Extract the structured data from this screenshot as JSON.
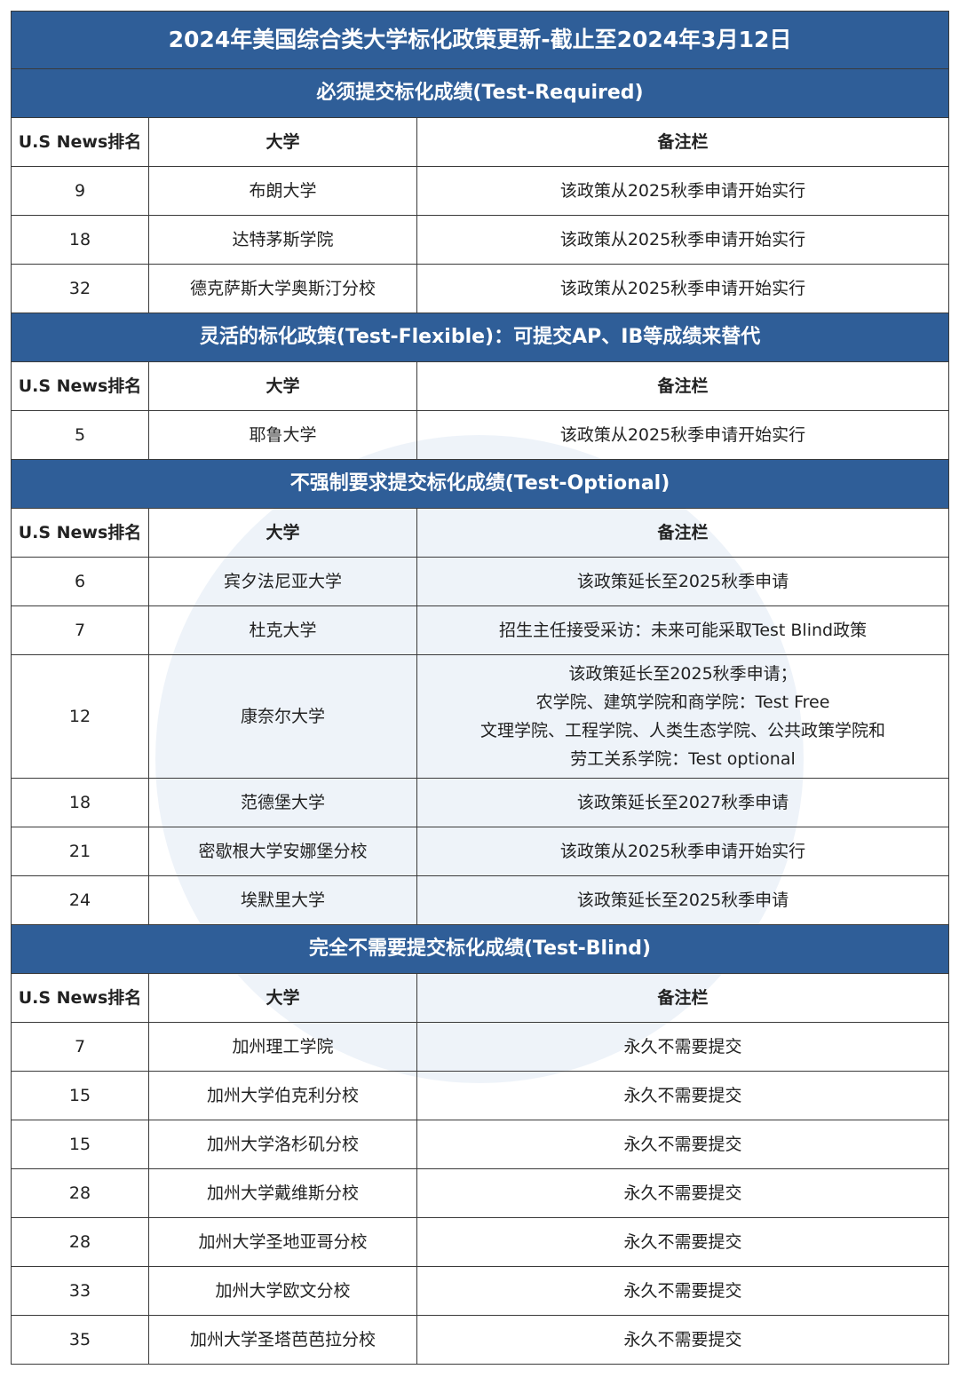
{
  "title": "2024年美国综合类大学标化政策更新-截止至2024年3月12日",
  "sections": [
    {
      "heading": "必须提交标化成绩(Test-Required)",
      "columns": [
        "U.S News排名",
        "大学",
        "备注栏"
      ],
      "rows": [
        [
          9,
          "布朗大学",
          [
            "该政策从2025秋季申请开始实行"
          ]
        ],
        [
          18,
          "达特茅斯学院",
          [
            "该政策从2025秋季申请开始实行"
          ]
        ],
        [
          32,
          "德克萨斯大学奥斯汀分校",
          [
            "该政策从2025秋季申请开始实行"
          ]
        ]
      ]
    },
    {
      "heading": "灵活的标化政策(Test-Flexible)：可提交AP、IB等成绩来替代",
      "columns": [
        "U.S News排名",
        "大学",
        "备注栏"
      ],
      "rows": [
        [
          5,
          "耶鲁大学",
          [
            "该政策从2025秋季申请开始实行"
          ]
        ]
      ]
    },
    {
      "heading": "不强制要求提交标化成绩(Test-Optional)",
      "columns": [
        "U.S News排名",
        "大学",
        "备注栏"
      ],
      "rows": [
        [
          6,
          "宾夕法尼亚大学",
          [
            "该政策延长至2025秋季申请"
          ]
        ],
        [
          7,
          "杜克大学",
          [
            "招生主任接受采访：未来可能采取Test Blind政策"
          ]
        ],
        [
          12,
          "康奈尔大学",
          [
            "该政策延长至2025秋季申请；",
            "农学院、建筑学院和商学院：Test Free",
            "文理学院、工程学院、人类生态学院、公共政策学院和",
            "劳工关系学院：Test optional"
          ]
        ],
        [
          18,
          "范德堡大学",
          [
            "该政策延长至2027秋季申请"
          ]
        ],
        [
          21,
          "密歇根大学安娜堡分校",
          [
            "该政策从2025秋季申请开始实行"
          ]
        ],
        [
          24,
          "埃默里大学",
          [
            "该政策延长至2025秋季申请"
          ]
        ]
      ]
    },
    {
      "heading": "完全不需要提交标化成绩(Test-Blind)",
      "columns": [
        "U.S News排名",
        "大学",
        "备注栏"
      ],
      "rows": [
        [
          7,
          "加州理工学院",
          [
            "永久不需要提交"
          ]
        ],
        [
          15,
          "加州大学伯克利分校",
          [
            "永久不需要提交"
          ]
        ],
        [
          15,
          "加州大学洛杉矶分校",
          [
            "永久不需要提交"
          ]
        ],
        [
          28,
          "加州大学戴维斯分校",
          [
            "永久不需要提交"
          ]
        ],
        [
          28,
          "加州大学圣地亚哥分校",
          [
            "永久不需要提交"
          ]
        ],
        [
          33,
          "加州大学欧文分校",
          [
            "永久不需要提交"
          ]
        ],
        [
          35,
          "加州大学圣塔芭芭拉分校",
          [
            "永久不需要提交"
          ]
        ]
      ]
    }
  ]
}
